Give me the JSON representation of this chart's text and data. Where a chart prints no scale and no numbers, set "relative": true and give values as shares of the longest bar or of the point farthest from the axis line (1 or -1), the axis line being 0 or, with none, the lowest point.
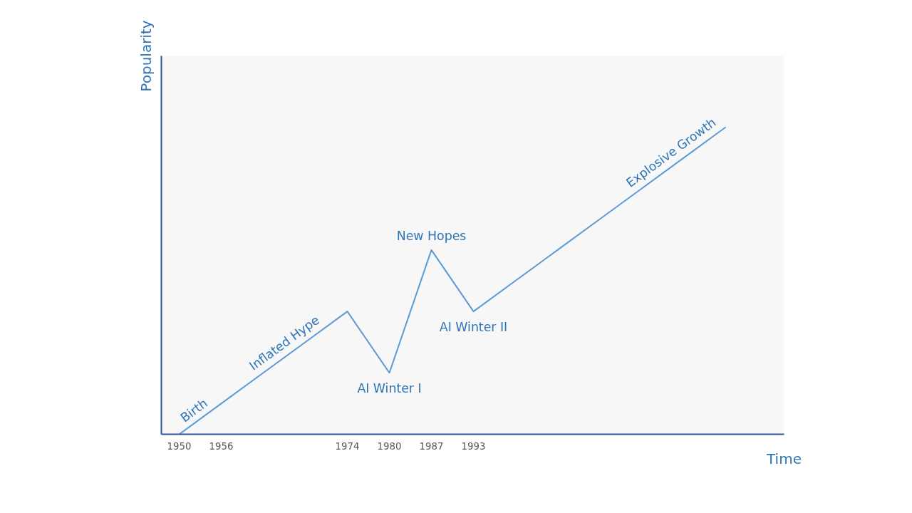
{
  "chart_data": {
    "type": "line",
    "relative": true,
    "xlabel": "Time",
    "ylabel": "Popularity",
    "categories": [
      "1950",
      "1956",
      null,
      null,
      "1974",
      "1980",
      "1987",
      "1993",
      null,
      null,
      null,
      null,
      null,
      null
    ],
    "series": [
      {
        "color": "#5b9bd5",
        "values": [
          0,
          0.1,
          0.2,
          0.3,
          0.4,
          0.2,
          0.6,
          0.4,
          0.5,
          0.6,
          0.7,
          0.8,
          0.9,
          1.0
        ]
      }
    ],
    "annotations": [
      {
        "text": "Birth",
        "x": "1956",
        "y": 0.1
      },
      "Inflated Hype",
      {
        "text": "AI Winter I",
        "x": "1980",
        "y": 0.2
      },
      {
        "text": "New Hopes",
        "x": "1987",
        "y": 0.6
      },
      {
        "text": "AI Winter II",
        "x": "1993",
        "y": 0.4
      },
      "Explosive Growth"
    ],
    "grid": false,
    "marker": "none",
    "line_style": "solid"
  }
}
